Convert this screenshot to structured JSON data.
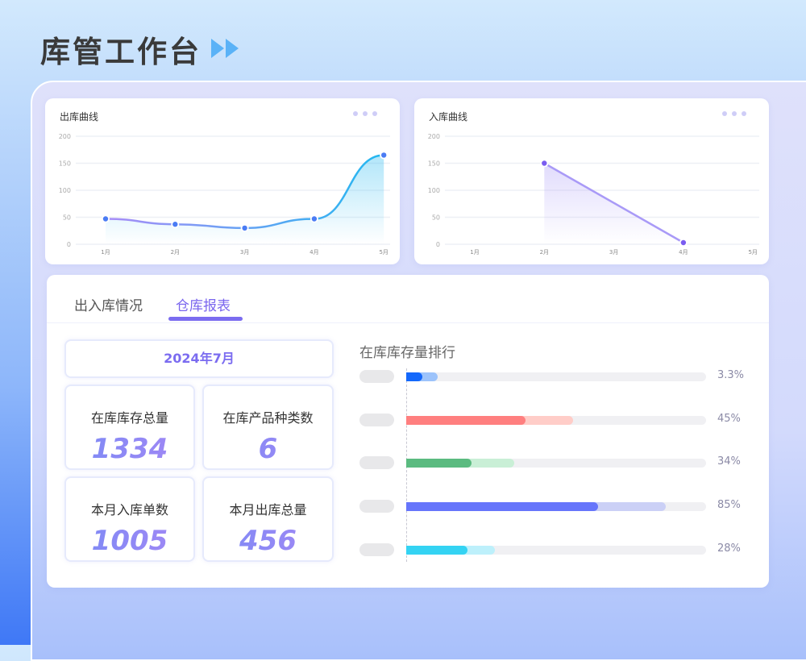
{
  "header": {
    "title": "库管工作台",
    "icon": "double-arrow-right-icon"
  },
  "chart_data": [
    {
      "type": "area",
      "title": "出库曲线",
      "categories": [
        "1月",
        "2月",
        "3月",
        "4月",
        "5月"
      ],
      "values": [
        47,
        37,
        30,
        47,
        165
      ],
      "ylim": [
        0,
        200
      ],
      "yticks": [
        0,
        50,
        100,
        150,
        200
      ],
      "grid": true,
      "smooth": true,
      "colors": [
        "#a98cf7",
        "#22b8f0"
      ]
    },
    {
      "type": "area",
      "title": "入库曲线",
      "categories": [
        "1月",
        "2月",
        "3月",
        "4月",
        "5月"
      ],
      "x": [
        "2月",
        "4月"
      ],
      "values": [
        150,
        3
      ],
      "ylim": [
        0,
        200
      ],
      "yticks": [
        0,
        50,
        100,
        150,
        200
      ],
      "grid": true,
      "smooth": false,
      "colors": [
        "#a99af7"
      ]
    }
  ],
  "tabs": [
    {
      "label": "出入库情况"
    },
    {
      "label": "仓库报表"
    }
  ],
  "report": {
    "date": "2024年7月",
    "stats": [
      {
        "label": "在库库存总量",
        "value": "1334"
      },
      {
        "label": "在库产品种类数",
        "value": "6"
      },
      {
        "label": "本月入库单数",
        "value": "1005"
      },
      {
        "label": "本月出库总量",
        "value": "456"
      }
    ],
    "ranking_title": "在库库存量排行",
    "ranking": [
      {
        "pct": "3.3%",
        "primary": 0.054,
        "secondary": 0.105,
        "color": "#1468fb",
        "light": "#9cc3fb"
      },
      {
        "pct": "45%",
        "primary": 0.398,
        "secondary": 0.557,
        "color": "#ff7f7f",
        "light": "#ffcdc8"
      },
      {
        "pct": "34%",
        "primary": 0.218,
        "secondary": 0.36,
        "color": "#5bbb80",
        "light": "#c9efd6"
      },
      {
        "pct": "85%",
        "primary": 0.64,
        "secondary": 0.865,
        "color": "#6675fb",
        "light": "#cbd0f6"
      },
      {
        "pct": "28%",
        "primary": 0.204,
        "secondary": 0.296,
        "color": "#34d3f3",
        "light": "#bdf0fb"
      }
    ]
  }
}
